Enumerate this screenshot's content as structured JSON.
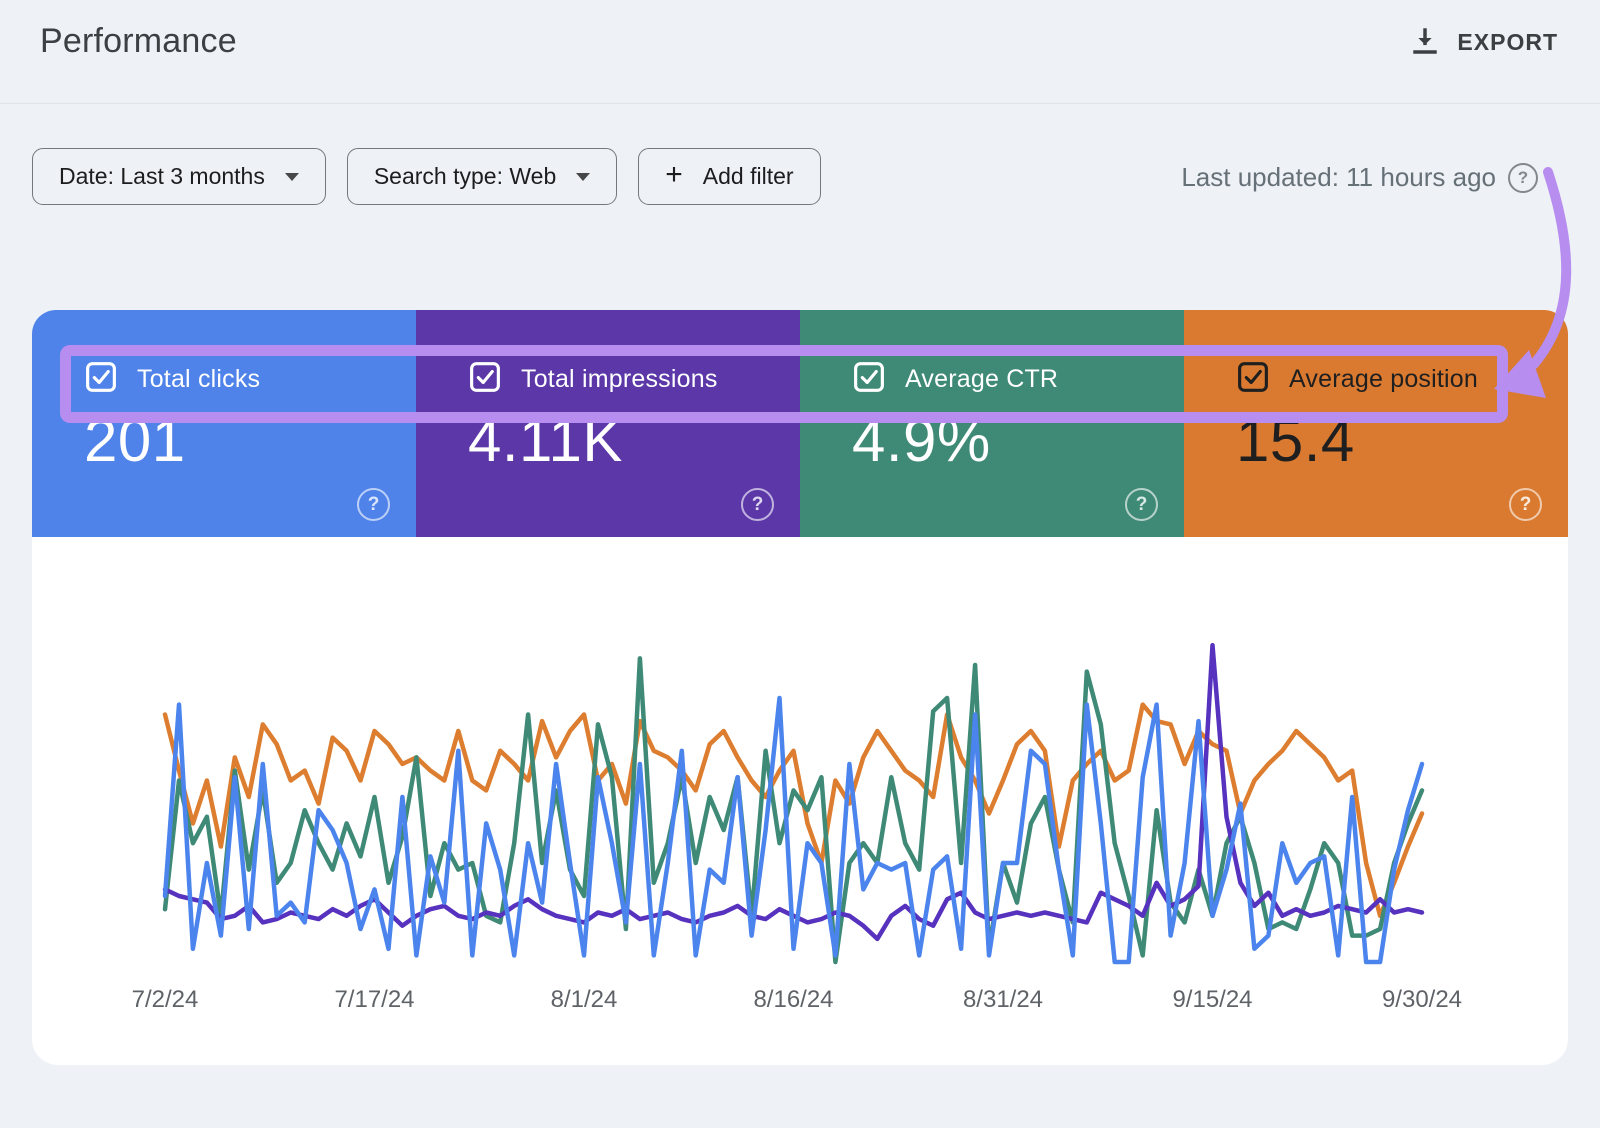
{
  "header": {
    "title": "Performance",
    "export_label": "EXPORT"
  },
  "toolbar": {
    "date_filter": "Date: Last 3 months",
    "search_type_filter": "Search type: Web",
    "add_filter": "Add filter",
    "last_updated": "Last updated: 11 hours ago",
    "help_glyph": "?"
  },
  "icons": {
    "export": "download-icon",
    "filter_caret": "caret-down-icon",
    "add": "plus-icon",
    "help": "question-mark-circle-icon",
    "card_checkbox": "checked-checkbox-icon",
    "annotation": "curved-arrow-icon"
  },
  "annotation": {
    "highlight_color": "#b78ef0"
  },
  "metric_cards": [
    {
      "label": "Total clicks",
      "value": "201",
      "checked": true,
      "bg": "#4f83ea",
      "fg": "#ffffff",
      "help_glyph": "?"
    },
    {
      "label": "Total impressions",
      "value": "4.11K",
      "checked": true,
      "bg": "#5b37a8",
      "fg": "#ffffff",
      "help_glyph": "?"
    },
    {
      "label": "Average CTR",
      "value": "4.9%",
      "checked": true,
      "bg": "#3f8a77",
      "fg": "#ffffff",
      "help_glyph": "?"
    },
    {
      "label": "Average position",
      "value": "15.4",
      "checked": true,
      "bg": "#d97a30",
      "fg": "#1f1f1f",
      "help_glyph": "?"
    }
  ],
  "chart_data": {
    "type": "line",
    "title": "",
    "xlabel": "",
    "ylabel": "",
    "x_start": "7/2/24",
    "x_end": "9/30/24",
    "points_per_series": 91,
    "tick_labels": [
      "7/2/24",
      "7/17/24",
      "8/1/24",
      "8/16/24",
      "8/31/24",
      "9/15/24",
      "9/30/24"
    ],
    "tick_day_index": [
      0,
      15,
      30,
      45,
      60,
      75,
      90
    ],
    "grid": false,
    "legend_position": "none (metric cards act as legend)",
    "y_axis": "hidden; values estimated as percent of plot height",
    "ylim": [
      0,
      100
    ],
    "series": [
      {
        "name": "Total clicks",
        "color": "#4c84ee",
        "values": [
          20,
          78,
          4,
          30,
          8,
          56,
          10,
          60,
          14,
          18,
          12,
          46,
          40,
          30,
          10,
          22,
          4,
          50,
          2,
          32,
          18,
          64,
          2,
          42,
          28,
          2,
          36,
          18,
          60,
          30,
          2,
          56,
          36,
          12,
          60,
          2,
          30,
          64,
          2,
          28,
          24,
          56,
          8,
          40,
          80,
          4,
          36,
          30,
          2,
          60,
          22,
          30,
          28,
          30,
          2,
          28,
          32,
          4,
          75,
          2,
          30,
          30,
          64,
          60,
          28,
          2,
          78,
          42,
          0,
          0,
          56,
          78,
          8,
          30,
          73,
          14,
          28,
          48,
          4,
          8,
          36,
          24,
          30,
          32,
          2,
          50,
          0,
          0,
          28,
          46,
          60
        ]
      },
      {
        "name": "Total impressions",
        "color": "#5632be",
        "values": [
          22,
          20,
          19,
          18,
          13,
          14,
          17,
          12,
          13,
          15,
          14,
          13,
          16,
          14,
          17,
          19,
          15,
          11,
          14,
          16,
          17,
          14,
          13,
          15,
          14,
          17,
          19,
          16,
          14,
          13,
          12,
          15,
          14,
          16,
          13,
          14,
          15,
          13,
          12,
          14,
          15,
          17,
          14,
          13,
          16,
          14,
          12,
          13,
          15,
          14,
          11,
          7,
          14,
          17,
          13,
          11,
          19,
          21,
          15,
          13,
          14,
          15,
          14,
          15,
          14,
          13,
          12,
          21,
          19,
          17,
          14,
          24,
          17,
          19,
          23,
          96,
          44,
          24,
          17,
          21,
          14,
          16,
          14,
          15,
          17,
          16,
          15,
          19,
          15,
          16,
          15
        ]
      },
      {
        "name": "Average CTR",
        "color": "#3f8a77",
        "values": [
          16,
          55,
          36,
          44,
          14,
          58,
          28,
          52,
          24,
          30,
          46,
          36,
          28,
          42,
          32,
          50,
          24,
          38,
          62,
          20,
          36,
          28,
          30,
          14,
          12,
          36,
          75,
          30,
          52,
          28,
          20,
          72,
          56,
          10,
          92,
          24,
          36,
          56,
          30,
          50,
          40,
          56,
          14,
          64,
          36,
          52,
          46,
          56,
          0,
          30,
          36,
          30,
          56,
          36,
          28,
          76,
          80,
          30,
          90,
          4,
          30,
          18,
          42,
          50,
          28,
          12,
          88,
          72,
          36,
          20,
          2,
          46,
          18,
          12,
          28,
          14,
          36,
          44,
          30,
          10,
          12,
          10,
          22,
          36,
          30,
          8,
          8,
          10,
          30,
          42,
          52
        ]
      },
      {
        "name": "Average position",
        "color": "#dd7d2f",
        "values": [
          75,
          58,
          42,
          55,
          35,
          62,
          50,
          72,
          66,
          55,
          58,
          48,
          68,
          64,
          55,
          70,
          66,
          60,
          62,
          58,
          55,
          70,
          55,
          52,
          64,
          60,
          55,
          73,
          62,
          70,
          75,
          55,
          60,
          48,
          73,
          64,
          62,
          58,
          52,
          66,
          70,
          62,
          55,
          50,
          58,
          64,
          42,
          30,
          55,
          48,
          62,
          70,
          64,
          58,
          55,
          50,
          75,
          62,
          55,
          45,
          55,
          66,
          70,
          64,
          35,
          55,
          60,
          64,
          55,
          58,
          78,
          73,
          72,
          60,
          70,
          66,
          64,
          45,
          55,
          60,
          64,
          70,
          66,
          62,
          55,
          58,
          30,
          14,
          24,
          35,
          45
        ]
      }
    ]
  }
}
